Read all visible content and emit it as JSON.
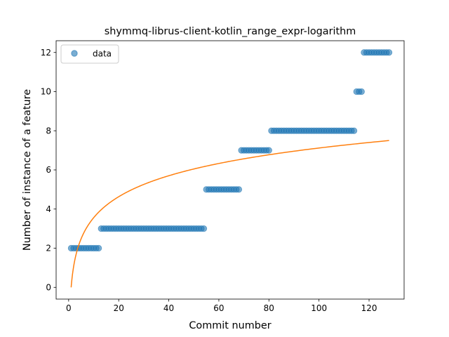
{
  "colors": {
    "scatter": "#1f77b4",
    "fit_line": "#ff7f0e",
    "axes": "#000000",
    "background": "#ffffff"
  },
  "chart_data": {
    "type": "scatter",
    "title": "shymmq-librus-client-kotlin_range_expr-logarithm",
    "xlabel": "Commit number",
    "ylabel": "Number of instance of a feature",
    "xlim": [
      -5,
      134
    ],
    "ylim": [
      -0.6,
      12.6
    ],
    "xticks": [
      0,
      20,
      40,
      60,
      80,
      100,
      120
    ],
    "yticks": [
      0,
      2,
      4,
      6,
      8,
      10,
      12
    ],
    "grid": false,
    "legend_position": "upper-left",
    "series": [
      {
        "name": "data",
        "kind": "scatter",
        "segments": [
          {
            "x_from": 1,
            "x_to": 12,
            "y": 2
          },
          {
            "x_from": 13,
            "x_to": 54,
            "y": 3
          },
          {
            "x_from": 55,
            "x_to": 68,
            "y": 5
          },
          {
            "x_from": 69,
            "x_to": 80,
            "y": 7
          },
          {
            "x_from": 81,
            "x_to": 114,
            "y": 8
          },
          {
            "x_from": 115,
            "x_to": 117,
            "y": 10
          },
          {
            "x_from": 118,
            "x_to": 128,
            "y": 12
          }
        ]
      },
      {
        "kind": "line",
        "fit": "logarithmic",
        "x_range": [
          1,
          128
        ],
        "y_start": 0,
        "y_end": 7.5
      }
    ]
  }
}
